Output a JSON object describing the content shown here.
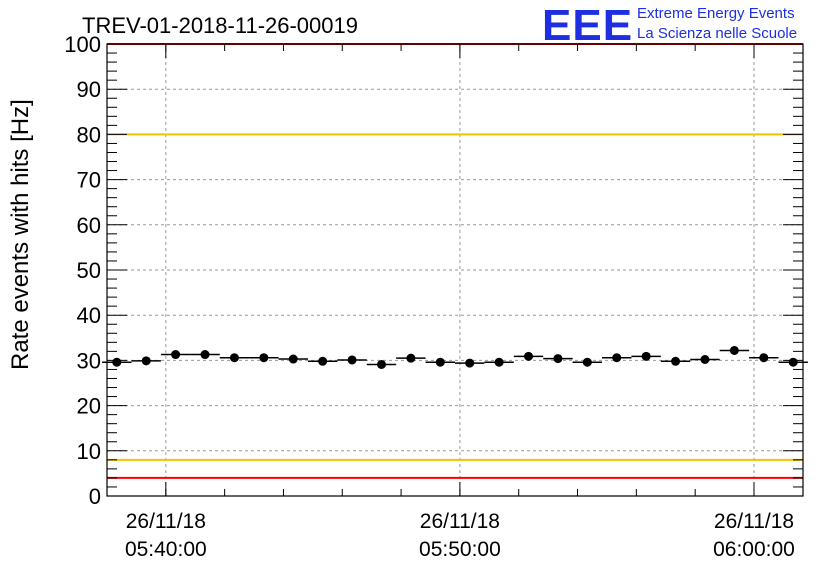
{
  "header": {
    "title": "TREV-01-2018-11-26-00019",
    "logo_text": "EEE",
    "logo_line1": "Extreme Energy Events",
    "logo_line2": "La Scienza nelle Scuole"
  },
  "colors": {
    "data": "#000000",
    "red_line": "#ff0000",
    "yellow_line": "#f2c400",
    "logo": "#1d2fe0",
    "grid": "#999999"
  },
  "chart_data": {
    "type": "scatter",
    "title": "TREV-01-2018-11-26-00019",
    "ylabel": "Rate events with hits [Hz]",
    "xlabel": "",
    "ylim": [
      0,
      100
    ],
    "xlim": [
      "2018-11-26 05:38:00",
      "2018-11-26 06:01:40"
    ],
    "grid": true,
    "yticks": [
      "0",
      "10",
      "20",
      "30",
      "40",
      "50",
      "60",
      "70",
      "80",
      "90",
      "100"
    ],
    "xticks": [
      {
        "date": "26/11/18",
        "time": "05:40:00"
      },
      {
        "date": "26/11/18",
        "time": "05:50:00"
      },
      {
        "date": "26/11/18",
        "time": "06:00:00"
      }
    ],
    "reference_lines": [
      {
        "y": 100,
        "color": "red"
      },
      {
        "y": 80,
        "color": "yellow"
      },
      {
        "y": 8,
        "color": "yellow"
      },
      {
        "y": 4,
        "color": "red"
      }
    ],
    "series": [
      {
        "x": [
          "05:38:20",
          "05:39:20",
          "05:40:20",
          "05:41:20",
          "05:42:20",
          "05:43:20",
          "05:44:20",
          "05:45:20",
          "05:46:20",
          "05:47:20",
          "05:48:20",
          "05:49:20",
          "05:50:20",
          "05:51:20",
          "05:52:20",
          "05:53:20",
          "05:54:20",
          "05:55:20",
          "05:56:20",
          "05:57:20",
          "05:58:20",
          "05:59:20",
          "06:00:20",
          "06:01:20"
        ],
        "y": [
          29.6,
          29.9,
          31.3,
          31.3,
          30.6,
          30.6,
          30.3,
          29.8,
          30.1,
          29.1,
          30.5,
          29.6,
          29.4,
          29.6,
          30.9,
          30.4,
          29.6,
          30.6,
          30.9,
          29.8,
          30.2,
          32.2,
          30.6,
          29.6
        ]
      }
    ]
  }
}
